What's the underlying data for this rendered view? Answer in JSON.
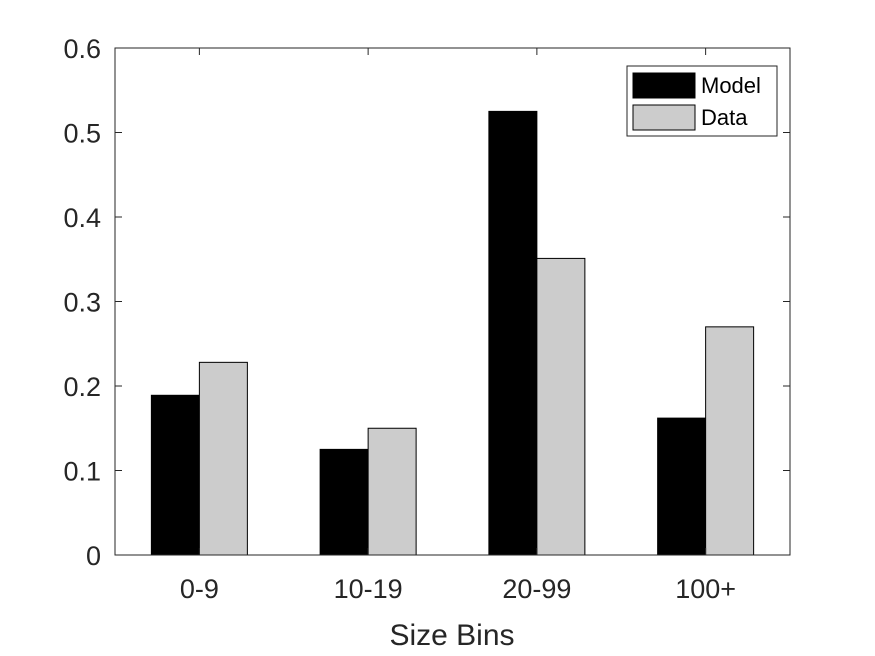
{
  "chart_data": {
    "type": "bar",
    "title": "",
    "xlabel": "Size Bins",
    "ylabel": "",
    "categories": [
      "0-9",
      "10-19",
      "20-99",
      "100+"
    ],
    "series": [
      {
        "name": "Model",
        "values": [
          0.189,
          0.125,
          0.525,
          0.162
        ],
        "color": "#000000"
      },
      {
        "name": "Data",
        "values": [
          0.228,
          0.15,
          0.351,
          0.27
        ],
        "color": "#cccccc"
      }
    ],
    "ylim": [
      0,
      0.6
    ],
    "yticks": [
      "0",
      "0.1",
      "0.2",
      "0.3",
      "0.4",
      "0.5",
      "0.6"
    ],
    "grid": false,
    "legend_position": "top-right"
  }
}
